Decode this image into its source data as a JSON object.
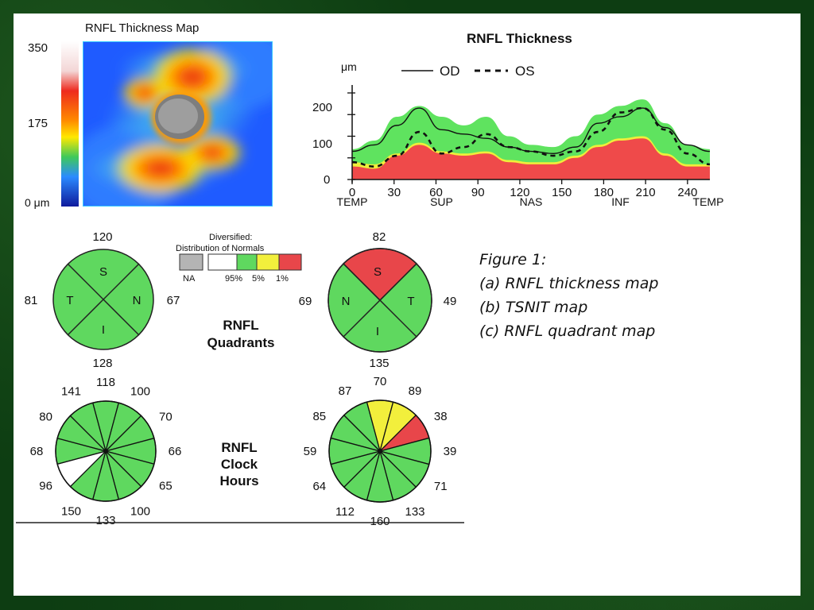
{
  "map": {
    "title": "RNFL Thickness Map",
    "scale_labels": [
      "350",
      "175",
      "0 μm"
    ]
  },
  "tsnit": {
    "title": "RNFL Thickness",
    "unit_label": "μm",
    "legend": [
      "OD",
      "OS"
    ],
    "y_ticks": [
      "200",
      "100",
      "0"
    ],
    "x_ticks": [
      "0",
      "30",
      "60",
      "90",
      "120",
      "150",
      "180",
      "210",
      "240"
    ],
    "x_regions": [
      "TEMP",
      "SUP",
      "NAS",
      "INF",
      "TEMP"
    ]
  },
  "legend_box": {
    "title_line1": "Diversified:",
    "title_line2": "Distribution of Normals",
    "labels": [
      "NA",
      "95%",
      "5%",
      "1%"
    ],
    "colors": [
      "#b4b4b4",
      "#ffffff",
      "#5fd85f",
      "#f2ef3c",
      "#e8464a"
    ]
  },
  "quadrants": {
    "label_line1": "RNFL",
    "label_line2": "Quadrants",
    "od": {
      "sup": "120",
      "inf": "128",
      "temp": "81",
      "nas": "67",
      "letters": [
        "S",
        "T",
        "N",
        "I"
      ]
    },
    "os": {
      "sup": "82",
      "inf": "135",
      "nas": "69",
      "temp": "49",
      "letters": [
        "S",
        "N",
        "T",
        "I"
      ]
    }
  },
  "clock_hours": {
    "label_line1": "RNFL",
    "label_line2": "Clock",
    "label_line3": "Hours",
    "od_values": [
      "118",
      "100",
      "70",
      "66",
      "65",
      "100",
      "133",
      "150",
      "96",
      "68",
      "80",
      "141"
    ],
    "os_values": [
      "70",
      "89",
      "38",
      "39",
      "71",
      "133",
      "160",
      "112",
      "64",
      "59",
      "85",
      "87"
    ]
  },
  "caption": {
    "line1": "Figure 1:",
    "line2": "(a) RNFL thickness map",
    "line3": "(b) TSNIT map",
    "line4": "(c) RNFL quadrant map"
  },
  "chart_data": {
    "type": "line",
    "title": "RNFL Thickness",
    "ylabel": "μm",
    "xlim": [
      0,
      256
    ],
    "ylim": [
      0,
      250
    ],
    "x": [
      0,
      16,
      32,
      48,
      64,
      80,
      96,
      112,
      128,
      144,
      160,
      176,
      192,
      208,
      224,
      240,
      256
    ],
    "series": [
      {
        "name": "OD",
        "values": [
          65,
          80,
          125,
          165,
          115,
          105,
          95,
          75,
          65,
          60,
          75,
          130,
          145,
          165,
          120,
          80,
          65
        ]
      },
      {
        "name": "OS",
        "values": [
          40,
          30,
          55,
          110,
          60,
          75,
          105,
          75,
          65,
          55,
          65,
          110,
          155,
          165,
          115,
          60,
          35
        ]
      }
    ],
    "bands": {
      "red_top": [
        30,
        25,
        55,
        80,
        60,
        55,
        60,
        40,
        35,
        35,
        50,
        75,
        90,
        95,
        55,
        30,
        30
      ],
      "yellow_top": [
        40,
        35,
        60,
        85,
        65,
        60,
        65,
        45,
        40,
        40,
        55,
        80,
        95,
        100,
        60,
        35,
        35
      ],
      "green_top": [
        70,
        90,
        145,
        170,
        145,
        125,
        145,
        100,
        80,
        75,
        100,
        150,
        170,
        185,
        130,
        80,
        70
      ]
    }
  }
}
